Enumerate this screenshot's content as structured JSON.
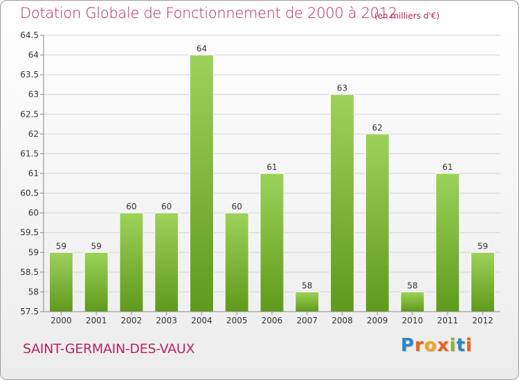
{
  "header": {
    "title": "Dotation Globale de Fonctionnement de 2000 à 2012",
    "unit_note": "(en milliers d'€)"
  },
  "footer": {
    "commune": "SAINT-GERMAIN-DES-VAUX",
    "logo": {
      "letters": [
        "P",
        "r",
        "o",
        "x",
        "i",
        "t",
        "i"
      ],
      "colors": [
        "#2a86c8",
        "#e8641a",
        "#f0a51c",
        "#e8641a",
        "#8ab32e",
        "#2a86c8",
        "#e8641a"
      ]
    }
  },
  "colors": {
    "title": "#b5245e",
    "bar_top": "#9dd25a",
    "bar_bottom": "#5f9a1c",
    "grid": "#d4d4d4",
    "axis": "#888888",
    "text": "#333333"
  },
  "chart_data": {
    "type": "bar",
    "categories": [
      "2000",
      "2001",
      "2002",
      "2003",
      "2004",
      "2005",
      "2006",
      "2007",
      "2008",
      "2009",
      "2010",
      "2011",
      "2012"
    ],
    "values": [
      59,
      59,
      60,
      60,
      64,
      60,
      61,
      58,
      63,
      62,
      58,
      61,
      59
    ],
    "data_labels": [
      "59",
      "59",
      "60",
      "60",
      "64",
      "60",
      "61",
      "58",
      "63",
      "62",
      "58",
      "61",
      "59"
    ],
    "yticks": [
      57.5,
      58,
      58.5,
      59,
      59.5,
      60,
      60.5,
      61,
      61.5,
      62,
      62.5,
      63,
      63.5,
      64,
      64.5
    ],
    "ytick_labels": [
      "57.5",
      "58",
      "58.5",
      "59",
      "59.5",
      "60",
      "60.5",
      "61",
      "61.5",
      "62",
      "62.5",
      "63",
      "63.5",
      "64",
      "64.5"
    ],
    "ylim": [
      57.5,
      64.5
    ],
    "grid": true,
    "legend": "none"
  }
}
